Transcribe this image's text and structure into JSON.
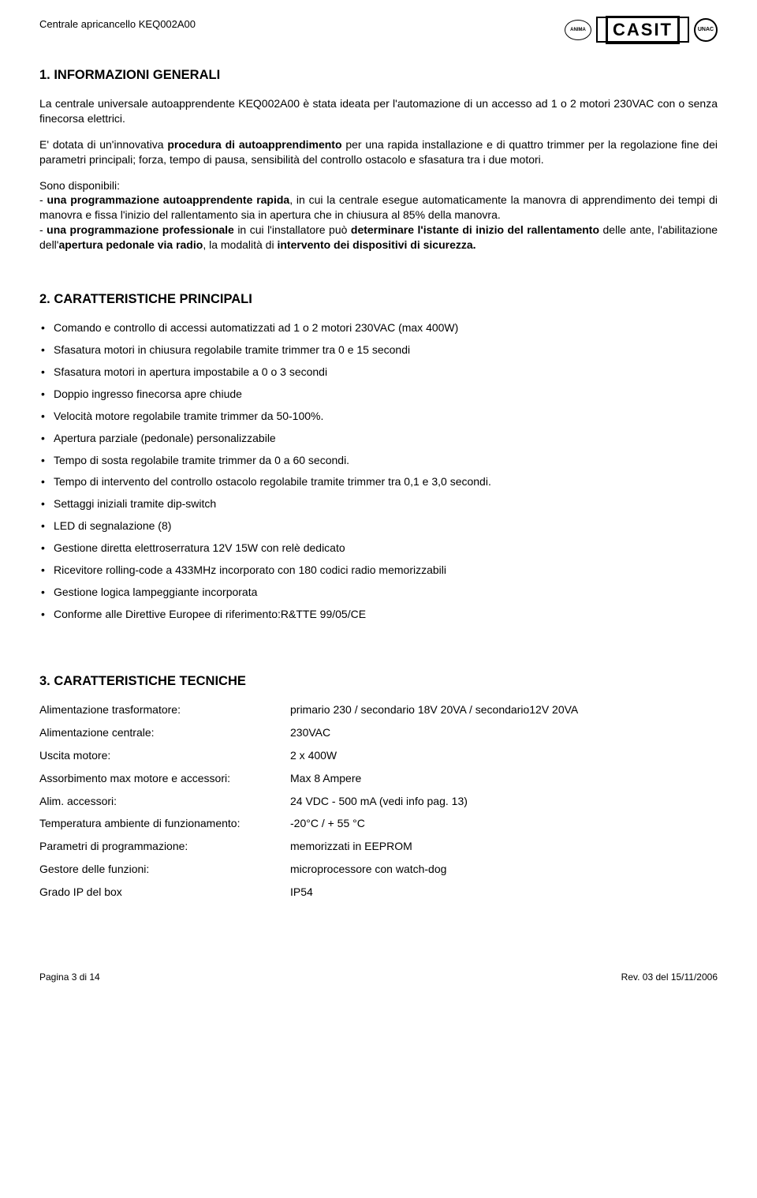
{
  "header": {
    "doc_title": "Centrale apricancello KEQ002A00",
    "logos": {
      "anima": "ANIMA",
      "casit": "CASIT",
      "unac": "UNAC"
    }
  },
  "section1": {
    "title": "1. INFORMAZIONI GENERALI",
    "p1": "La centrale universale autoapprendente KEQ002A00 è stata ideata per l'automazione di un accesso ad 1 o 2 motori 230VAC con o senza finecorsa elettrici.",
    "p2_a": "E' dotata di un'innovativa ",
    "p2_b": "procedura di autoapprendimento",
    "p2_c": " per una rapida installazione e di quattro trimmer per la regolazione fine dei parametri principali; forza, tempo di pausa, sensibilità del controllo ostacolo e sfasatura tra i due motori.",
    "p3_a": "Sono disponibili:",
    "p3_b": "- ",
    "p3_c": "una programmazione autoapprendente rapida",
    "p3_d": ", in cui la centrale esegue automaticamente la manovra di apprendimento dei tempi di manovra e fissa l'inizio del rallentamento sia in apertura che in chiusura al 85% della manovra.",
    "p3_e": "- ",
    "p3_f": "una programmazione professionale",
    "p3_g": " in cui l'installatore può ",
    "p3_h": "determinare l'istante di inizio del rallentamento",
    "p3_i": " delle ante, l'abilitazione dell'",
    "p3_j": "apertura pedonale via radio",
    "p3_k": ", la modalità di ",
    "p3_l": "intervento dei dispositivi di sicurezza."
  },
  "section2": {
    "title": "2. CARATTERISTICHE PRINCIPALI",
    "items": [
      "Comando e controllo di accessi automatizzati ad 1 o 2 motori  230VAC  (max 400W)",
      "Sfasatura motori in chiusura regolabile tramite trimmer tra 0 e 15 secondi",
      "Sfasatura motori in apertura impostabile a 0 o 3 secondi",
      "Doppio ingresso finecorsa apre chiude",
      "Velocità motore regolabile tramite trimmer da 50-100%.",
      "Apertura parziale (pedonale) personalizzabile",
      "Tempo di sosta regolabile tramite trimmer da 0 a 60 secondi.",
      "Tempo di intervento del controllo ostacolo regolabile tramite trimmer tra 0,1 e 3,0 secondi.",
      "Settaggi iniziali tramite dip-switch",
      "LED di segnalazione (8)",
      "Gestione diretta elettroserratura 12V 15W con relè dedicato",
      "Ricevitore rolling-code a 433MHz  incorporato con 180 codici radio memorizzabili",
      "Gestione logica lampeggiante incorporata",
      "Conforme alle Direttive Europee di riferimento:R&TTE 99/05/CE"
    ]
  },
  "section3": {
    "title": "3.  CARATTERISTICHE TECNICHE",
    "rows": [
      {
        "label": "Alimentazione trasformatore:",
        "value": "primario 230 / secondario 18V 20VA / secondario12V 20VA"
      },
      {
        "label": "Alimentazione centrale:",
        "value": "230VAC"
      },
      {
        "label": "Uscita  motore:",
        "value": "2 x 400W"
      },
      {
        "label": "Assorbimento max motore e accessori:",
        "value": "Max 8 Ampere"
      },
      {
        "label": "Alim. accessori:",
        "value": "24 VDC - 500 mA  (vedi info pag. 13)"
      },
      {
        "label": "Temperatura ambiente di funzionamento:",
        "value": "-20°C / + 55 °C"
      },
      {
        "label": "Parametri di programmazione:",
        "value": "memorizzati in EEPROM"
      },
      {
        "label": "Gestore delle funzioni:",
        "value": "microprocessore con watch-dog"
      },
      {
        "label": "Grado IP del box",
        "value": "IP54"
      }
    ]
  },
  "footer": {
    "left": "Pagina 3 di 14",
    "right": "Rev. 03 del 15/11/2006"
  }
}
